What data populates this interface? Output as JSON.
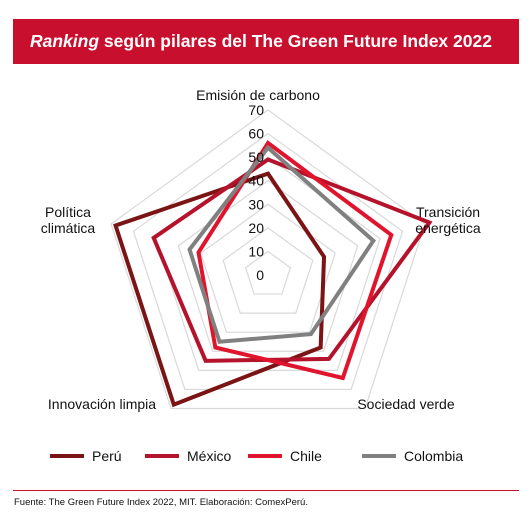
{
  "header": {
    "title_italic": "Ranking",
    "title_rest": " según pilares del The Green Future Index 2022"
  },
  "colors": {
    "header_bg": "#c8102e",
    "grid": "#d9d9d9"
  },
  "chart_data": {
    "type": "radar",
    "title": "Ranking según pilares del The Green Future Index 2022",
    "axes": [
      [
        "Emisión de carbono"
      ],
      [
        "Transición",
        "energética"
      ],
      [
        "Sociedad verde"
      ],
      [
        "Innovación limpia"
      ],
      [
        "Política",
        "climática"
      ]
    ],
    "range": [
      0,
      70
    ],
    "ticks": [
      "0",
      "10",
      "20",
      "30",
      "40",
      "50",
      "60",
      "70"
    ],
    "grid": true,
    "legend_position": "bottom",
    "series": [
      {
        "name": "Perú",
        "color": "#7b1414",
        "values": [
          43,
          25,
          38,
          68,
          68
        ]
      },
      {
        "name": "México",
        "color": "#b5122b",
        "values": [
          49,
          72,
          44,
          45,
          51
        ]
      },
      {
        "name": "Chile",
        "color": "#e0152d",
        "values": [
          56,
          55,
          54,
          38,
          31
        ]
      },
      {
        "name": "Colombia",
        "color": "#808080",
        "values": [
          54,
          47,
          31,
          35,
          35
        ]
      }
    ]
  },
  "source": "Fuente: The Green Future Index 2022, MIT. Elaboración: ComexPerú."
}
